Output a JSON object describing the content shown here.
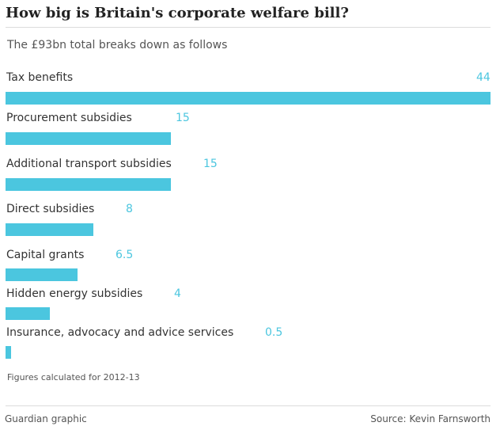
{
  "header": {
    "title": "How big is Britain's corporate welfare bill?",
    "subtitle": "The £93bn total breaks down as follows"
  },
  "chart_data": {
    "type": "bar",
    "orientation": "horizontal",
    "title": "How big is Britain's corporate welfare bill?",
    "subtitle": "The £93bn total breaks down as follows",
    "unit": "£bn",
    "categories": [
      "Tax benefits",
      "Procurement subsidies",
      "Additional transport subsidies",
      "Direct subsidies",
      "Capital grants",
      "Hidden energy subsidies",
      "Insurance, advocacy and advice services"
    ],
    "values": [
      44,
      15,
      15,
      8,
      6.5,
      4,
      0.5
    ],
    "value_labels": [
      "44",
      "15",
      "15",
      "8",
      "6.5",
      "4",
      "0.5"
    ],
    "xlim": [
      0,
      44
    ],
    "grid": false,
    "legend": "none",
    "bar_color": "#4bc6df",
    "label_color": "#4bc6df"
  },
  "notes": {
    "figures": "Figures calculated for 2012-13"
  },
  "footer": {
    "credit": "Guardian graphic",
    "source": "Source: Kevin Farnsworth"
  }
}
